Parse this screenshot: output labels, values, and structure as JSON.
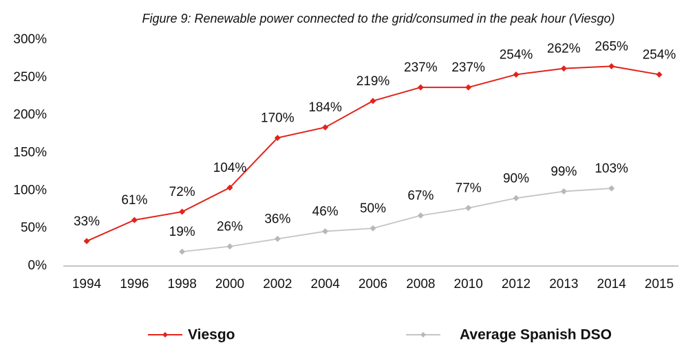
{
  "chart_data": {
    "type": "line",
    "title": "Figure 9: Renewable power connected to the grid/consumed in the peak hour (Viesgo)",
    "categories": [
      "1994",
      "1996",
      "1998",
      "2000",
      "2002",
      "2004",
      "2006",
      "2008",
      "2010",
      "2012",
      "2013",
      "2014",
      "2015"
    ],
    "series": [
      {
        "name": "Viesgo",
        "color": "#e2231a",
        "values": [
          33,
          61,
          72,
          104,
          170,
          184,
          219,
          237,
          237,
          254,
          262,
          265,
          254
        ],
        "value_labels": [
          "33%",
          "61%",
          "72%",
          "104%",
          "170%",
          "184%",
          "219%",
          "237%",
          "237%",
          "254%",
          "262%",
          "265%",
          "254%"
        ]
      },
      {
        "name": "Average Spanish DSO",
        "color": "#c4c4c4",
        "values": [
          null,
          null,
          19,
          26,
          36,
          46,
          50,
          67,
          77,
          90,
          99,
          103,
          null
        ],
        "value_labels": [
          null,
          null,
          "19%",
          "26%",
          "36%",
          "46%",
          "50%",
          "67%",
          "77%",
          "90%",
          "99%",
          "103%",
          null
        ]
      }
    ],
    "ylim": [
      0,
      300
    ],
    "yticks": [
      {
        "value": 0,
        "label": "0%"
      },
      {
        "value": 50,
        "label": "50%"
      },
      {
        "value": 100,
        "label": "100%"
      },
      {
        "value": 150,
        "label": "150%"
      },
      {
        "value": 200,
        "label": "200%"
      },
      {
        "value": 250,
        "label": "250%"
      },
      {
        "value": 300,
        "label": "300%"
      }
    ],
    "grid": false,
    "legend": "bottom"
  }
}
